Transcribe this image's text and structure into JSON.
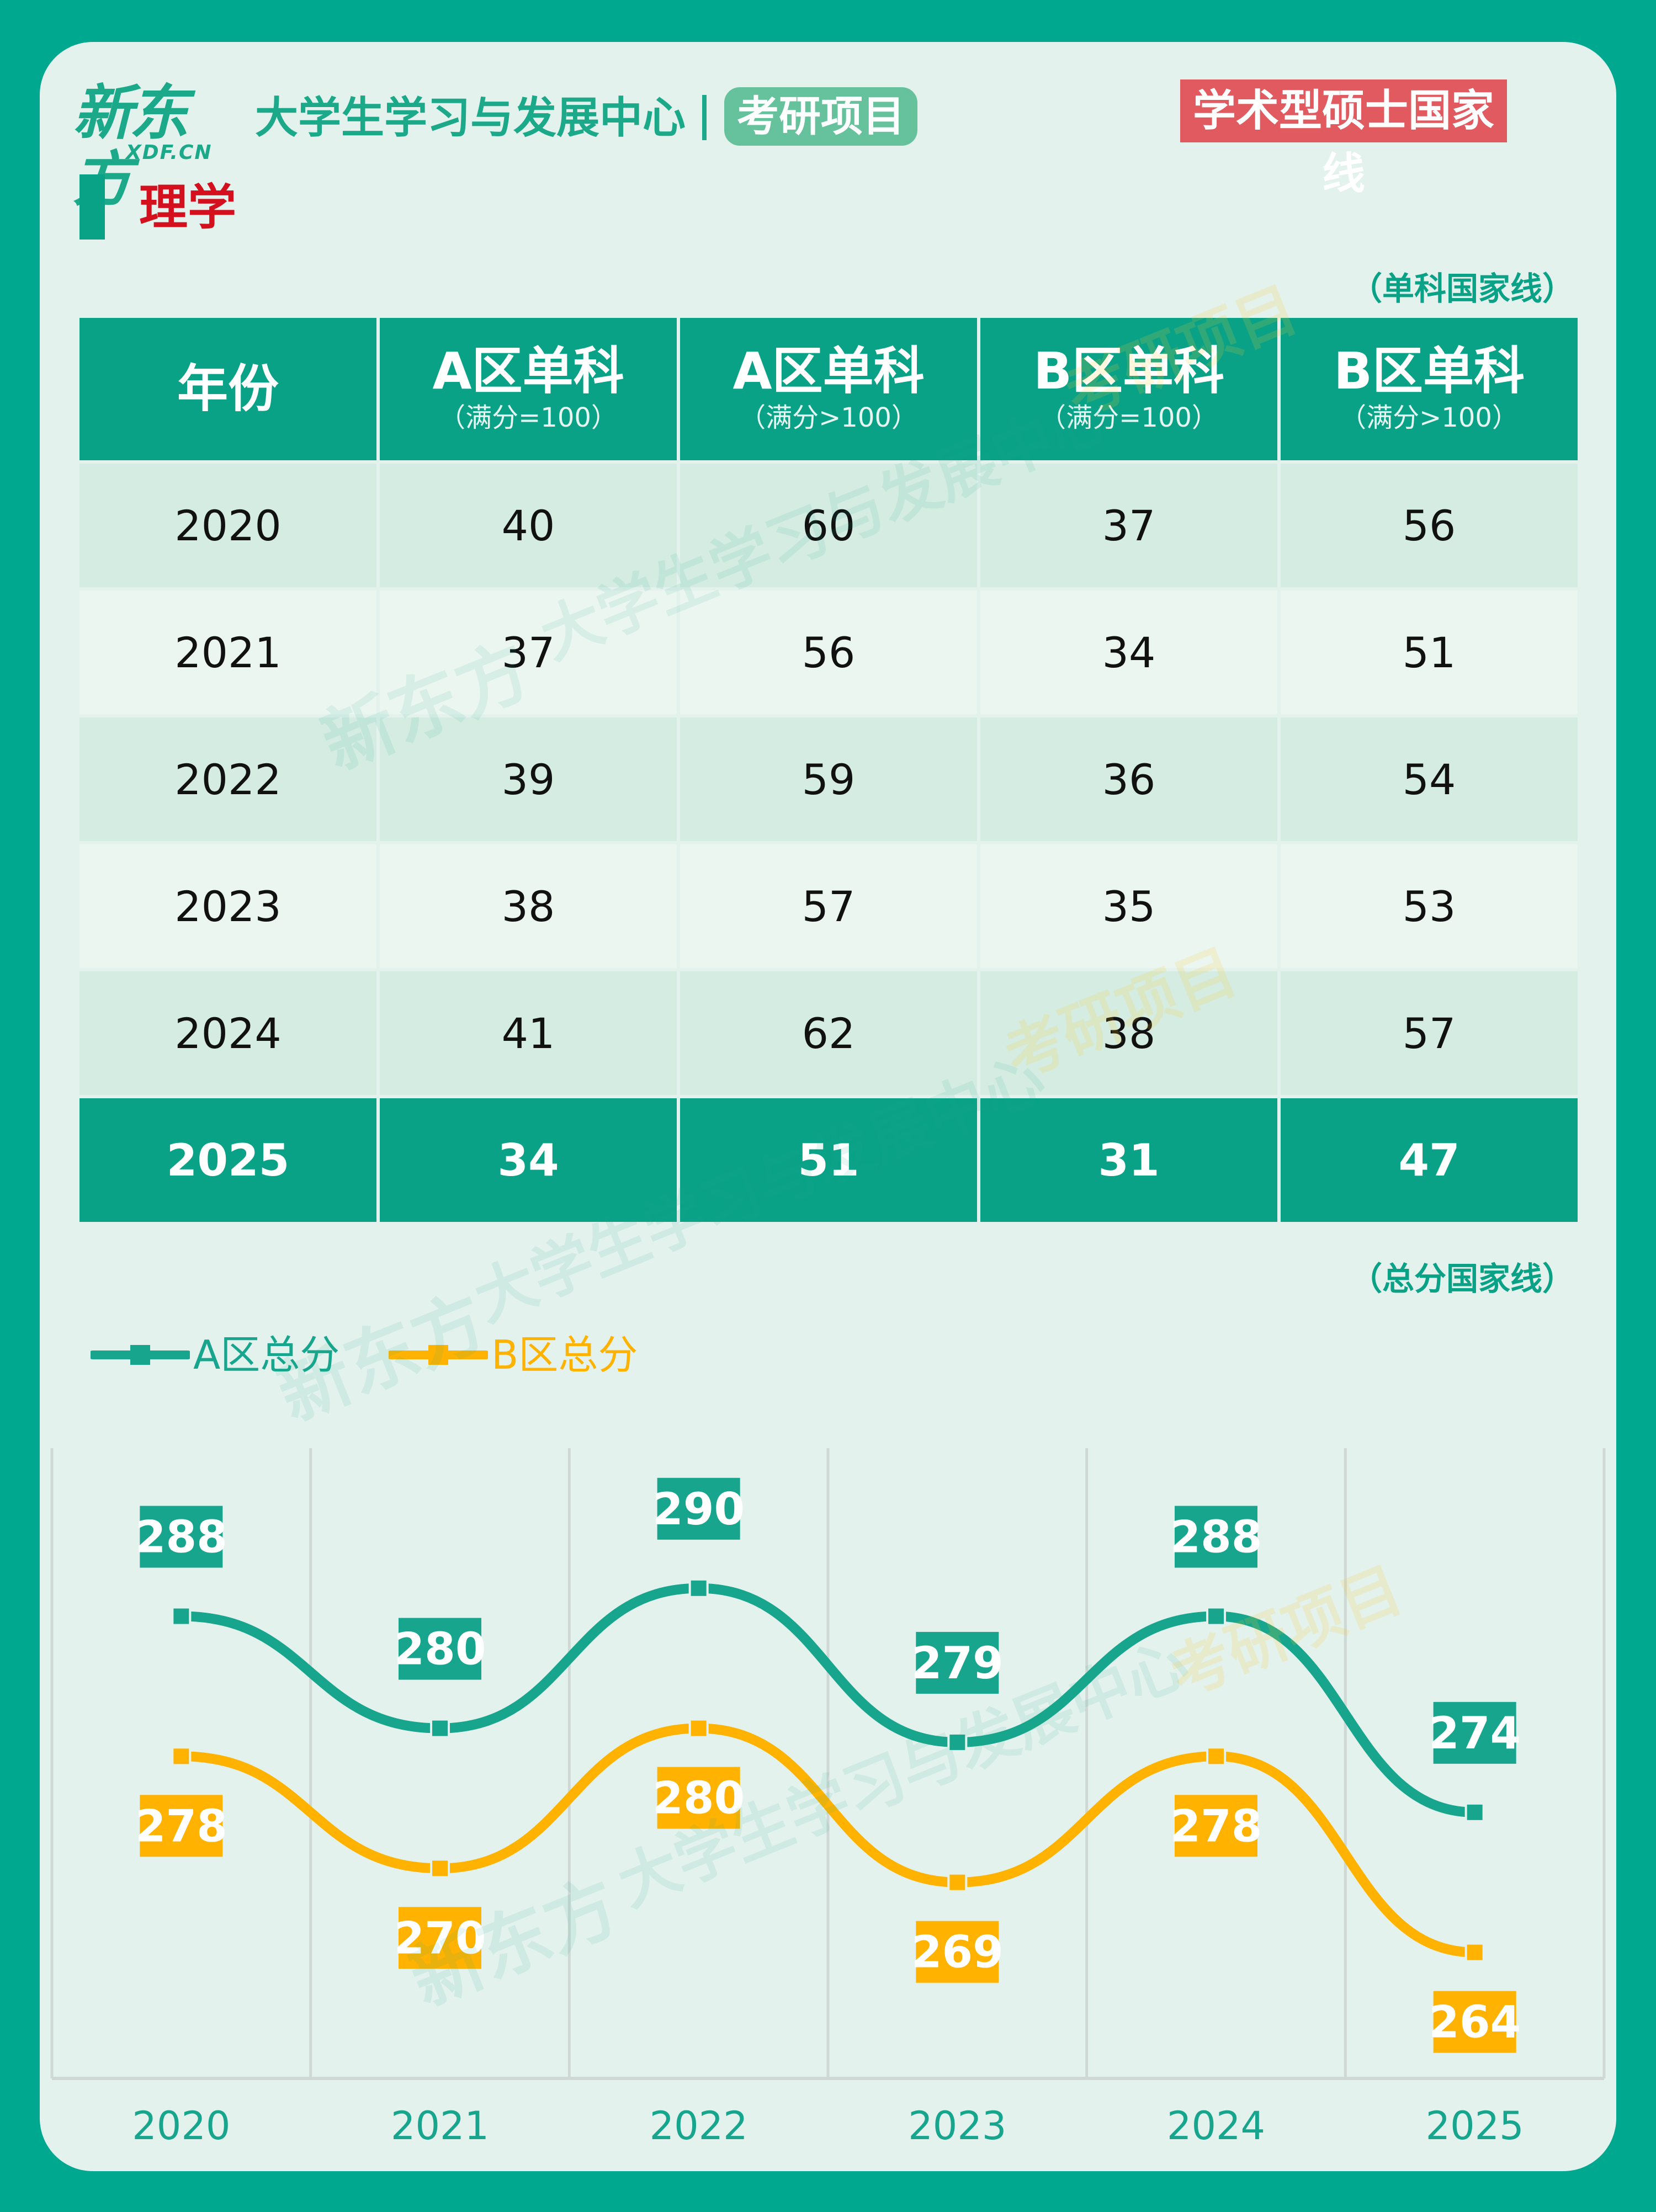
{
  "header": {
    "logo_cn": "新东方",
    "logo_en": "XDF.CN",
    "center_title": "大学生学习与发展中心",
    "pill": "考研项目",
    "right_title": "学术型硕士国家线"
  },
  "section": {
    "title": "理学",
    "single_label": "（单科国家线）",
    "total_label": "（总分国家线）"
  },
  "table": {
    "headers": [
      {
        "main": "年份",
        "sub": ""
      },
      {
        "main": "A区单科",
        "sub": "（满分=100）"
      },
      {
        "main": "A区单科",
        "sub": "（满分>100）"
      },
      {
        "main": "B区单科",
        "sub": "（满分=100）"
      },
      {
        "main": "B区单科",
        "sub": "（满分>100）"
      }
    ],
    "rows": [
      [
        "2020",
        "40",
        "60",
        "37",
        "56"
      ],
      [
        "2021",
        "37",
        "56",
        "34",
        "51"
      ],
      [
        "2022",
        "39",
        "59",
        "36",
        "54"
      ],
      [
        "2023",
        "38",
        "57",
        "35",
        "53"
      ],
      [
        "2024",
        "41",
        "62",
        "38",
        "57"
      ],
      [
        "2025",
        "34",
        "51",
        "31",
        "47"
      ]
    ]
  },
  "watermark": {
    "center": "大学生学习与发展中心",
    "project": "考研项目"
  },
  "chart_data": {
    "type": "line",
    "x": [
      "2020",
      "2021",
      "2022",
      "2023",
      "2024",
      "2025"
    ],
    "series": [
      {
        "name": "A区总分",
        "values": [
          288,
          280,
          290,
          279,
          288,
          274
        ],
        "color": "#17a68d"
      },
      {
        "name": "B区总分",
        "values": [
          278,
          270,
          280,
          269,
          278,
          264
        ],
        "color": "#ffb300"
      }
    ],
    "ylim": [
      255,
      300
    ],
    "grid": "vertical",
    "legend": "top-left",
    "smooth": true
  }
}
